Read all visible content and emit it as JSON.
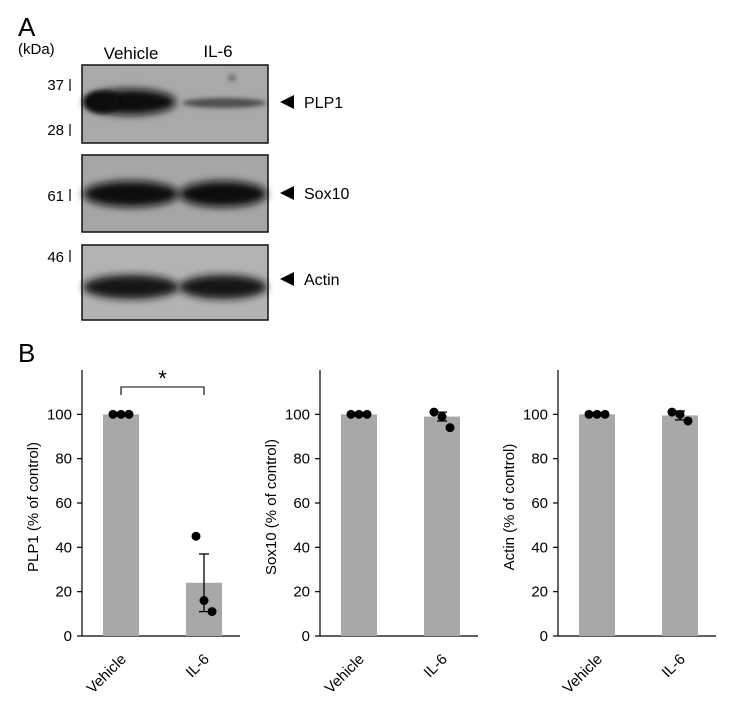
{
  "panel_a": {
    "label": "A",
    "unit_label": "(kDa)",
    "lanes": [
      "Vehicle",
      "IL-6"
    ],
    "blots": [
      {
        "name": "PLP1",
        "markers": [
          "37",
          "28"
        ],
        "intensity": [
          1.0,
          0.25
        ]
      },
      {
        "name": "Sox10",
        "markers": [
          "61"
        ],
        "intensity": [
          1.0,
          1.0
        ]
      },
      {
        "name": "Actin",
        "markers": [
          "46"
        ],
        "intensity": [
          1.0,
          1.0
        ]
      }
    ]
  },
  "panel_b": {
    "label": "B",
    "significance_mark": "*"
  },
  "chart_data": [
    {
      "type": "bar",
      "categories": [
        "Vehicle",
        "IL-6"
      ],
      "values": [
        100,
        24
      ],
      "error": [
        0,
        13
      ],
      "points": [
        [
          100,
          100,
          100
        ],
        [
          45,
          16,
          11
        ]
      ],
      "title": "",
      "xlabel": "",
      "ylabel": "PLP1 (% of control)",
      "ylim": [
        0,
        120
      ],
      "yticks": [
        "0",
        "20",
        "40",
        "60",
        "80",
        "100"
      ],
      "significance": true
    },
    {
      "type": "bar",
      "categories": [
        "Vehicle",
        "IL-6"
      ],
      "values": [
        100,
        99
      ],
      "error": [
        0,
        2
      ],
      "points": [
        [
          100,
          100,
          100
        ],
        [
          101,
          99,
          94
        ]
      ],
      "title": "",
      "xlabel": "",
      "ylabel": "Sox10 (% of control)",
      "ylim": [
        0,
        120
      ],
      "yticks": [
        "0",
        "20",
        "40",
        "60",
        "80",
        "100"
      ],
      "significance": false
    },
    {
      "type": "bar",
      "categories": [
        "Vehicle",
        "IL-6"
      ],
      "values": [
        100,
        99.5
      ],
      "error": [
        0,
        2
      ],
      "points": [
        [
          100,
          100,
          100
        ],
        [
          101,
          100,
          97
        ]
      ],
      "title": "",
      "xlabel": "",
      "ylabel": "Actin (% of control)",
      "ylim": [
        0,
        120
      ],
      "yticks": [
        "0",
        "20",
        "40",
        "60",
        "80",
        "100"
      ],
      "significance": false
    }
  ]
}
